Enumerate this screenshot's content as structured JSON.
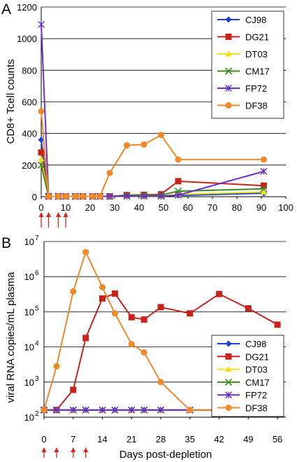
{
  "chart_data": [
    {
      "panel_label": "A",
      "type": "line",
      "title": "",
      "xlabel": "",
      "ylabel": "CD8+ Tcell counts",
      "xlim": [
        0,
        100
      ],
      "ylim": [
        0,
        1200
      ],
      "x_ticks": [
        "0",
        "10",
        "20",
        "30",
        "40",
        "50",
        "60",
        "70",
        "80",
        "90",
        "100"
      ],
      "y_ticks": [
        "0",
        "200",
        "400",
        "600",
        "800",
        "1000",
        "1200"
      ],
      "grid": "horizontal",
      "legend_position": "top-right",
      "arrows_x": [
        0,
        3,
        7,
        10
      ],
      "series": [
        {
          "name": "CJ98",
          "color": "#1a3fd6",
          "marker": "diamond",
          "x": [
            0,
            3,
            7,
            10,
            14,
            17,
            21,
            24,
            28,
            35,
            42,
            49,
            56,
            91
          ],
          "y": [
            360,
            2,
            2,
            2,
            2,
            2,
            2,
            2,
            2,
            5,
            5,
            5,
            8,
            22
          ]
        },
        {
          "name": "DG21",
          "color": "#c8241c",
          "marker": "square",
          "x": [
            0,
            3,
            7,
            10,
            14,
            17,
            21,
            24,
            28,
            35,
            42,
            49,
            56,
            91
          ],
          "y": [
            280,
            2,
            2,
            2,
            2,
            2,
            2,
            2,
            2,
            10,
            12,
            15,
            98,
            70
          ]
        },
        {
          "name": "DT03",
          "color": "#f2e01a",
          "marker": "triangle",
          "x": [
            0,
            3,
            7,
            10,
            14,
            17,
            21,
            24,
            28,
            35,
            42,
            49,
            56,
            91
          ],
          "y": [
            240,
            2,
            2,
            2,
            2,
            2,
            2,
            2,
            2,
            3,
            3,
            3,
            15,
            30
          ]
        },
        {
          "name": "CM17",
          "color": "#3f8a1f",
          "marker": "x",
          "x": [
            0,
            3,
            7,
            10,
            14,
            17,
            21,
            24,
            28,
            35,
            42,
            49,
            56,
            91
          ],
          "y": [
            200,
            2,
            2,
            2,
            2,
            2,
            2,
            2,
            2,
            8,
            10,
            10,
            35,
            50
          ]
        },
        {
          "name": "FP72",
          "color": "#6a2fc4",
          "marker": "star",
          "x": [
            0,
            3,
            7,
            10,
            14,
            17,
            21,
            24,
            28,
            35,
            42,
            49,
            56,
            91
          ],
          "y": [
            1090,
            2,
            2,
            2,
            2,
            2,
            2,
            2,
            2,
            3,
            3,
            3,
            10,
            160
          ]
        },
        {
          "name": "DF38",
          "color": "#ee8a2a",
          "marker": "circle",
          "x": [
            0,
            3,
            7,
            10,
            14,
            17,
            21,
            24,
            28,
            35,
            42,
            49,
            56,
            91
          ],
          "y": [
            540,
            2,
            2,
            2,
            2,
            2,
            2,
            2,
            150,
            325,
            330,
            390,
            235,
            235
          ]
        }
      ]
    },
    {
      "panel_label": "B",
      "type": "line",
      "title": "",
      "xlabel": "Days post-depletion",
      "ylabel": "viral RNA copies/mL plasma",
      "y_scale": "log",
      "xlim": [
        0,
        58
      ],
      "ylim": [
        100,
        10000000
      ],
      "x_ticks": [
        "0",
        "7",
        "14",
        "21",
        "28",
        "35",
        "42",
        "49",
        "56"
      ],
      "y_ticks": [
        "10",
        "10",
        "10",
        "10",
        "10",
        "10"
      ],
      "y_tick_exponents": [
        "2",
        "3",
        "4",
        "5",
        "6",
        "7"
      ],
      "grid": "horizontal",
      "legend_position": "bottom-right",
      "arrows_x": [
        0,
        3,
        7,
        10
      ],
      "series": [
        {
          "name": "CJ98",
          "color": "#1a3fd6",
          "marker": "diamond",
          "x": [
            0,
            3,
            7,
            10,
            14,
            17,
            21,
            24,
            28,
            35,
            42,
            49,
            56
          ],
          "y": [
            160,
            160,
            160,
            160,
            160,
            160,
            160,
            160,
            160,
            160,
            160,
            160,
            160
          ]
        },
        {
          "name": "DG21",
          "color": "#c8241c",
          "marker": "square",
          "x": [
            0,
            3,
            7,
            10,
            14,
            17,
            21,
            24,
            28,
            35,
            42,
            49,
            56
          ],
          "y": [
            160,
            160,
            600,
            18000,
            240000,
            330000,
            70000,
            60000,
            135000,
            90000,
            320000,
            125000,
            43000
          ]
        },
        {
          "name": "DT03",
          "color": "#f2e01a",
          "marker": "triangle",
          "x": [
            0,
            3,
            7,
            10,
            14,
            17,
            21,
            24,
            28,
            35,
            42,
            49,
            56
          ],
          "y": [
            160,
            160,
            160,
            160,
            160,
            160,
            160,
            160,
            160,
            160,
            160,
            160,
            160
          ]
        },
        {
          "name": "CM17",
          "color": "#3f8a1f",
          "marker": "x",
          "x": [
            0,
            3,
            7,
            10,
            14,
            17,
            21,
            24,
            28,
            35,
            42,
            49,
            56
          ],
          "y": [
            160,
            160,
            160,
            160,
            160,
            160,
            160,
            160,
            160,
            160,
            160,
            160,
            160
          ]
        },
        {
          "name": "FP72",
          "color": "#6a2fc4",
          "marker": "star",
          "x": [
            0,
            3,
            7,
            10,
            14,
            17,
            21,
            24,
            28,
            35,
            42,
            49,
            56
          ],
          "y": [
            160,
            160,
            160,
            160,
            160,
            160,
            160,
            160,
            160,
            160,
            160,
            160,
            160
          ]
        },
        {
          "name": "DF38",
          "color": "#ee8a2a",
          "marker": "circle",
          "x": [
            0,
            3,
            7,
            10,
            14,
            17,
            21,
            24,
            28,
            35,
            42,
            49,
            56
          ],
          "y": [
            160,
            2800,
            380000,
            5000000,
            500000,
            90000,
            12000,
            7000,
            1000,
            160,
            160,
            160,
            160
          ]
        }
      ]
    }
  ]
}
